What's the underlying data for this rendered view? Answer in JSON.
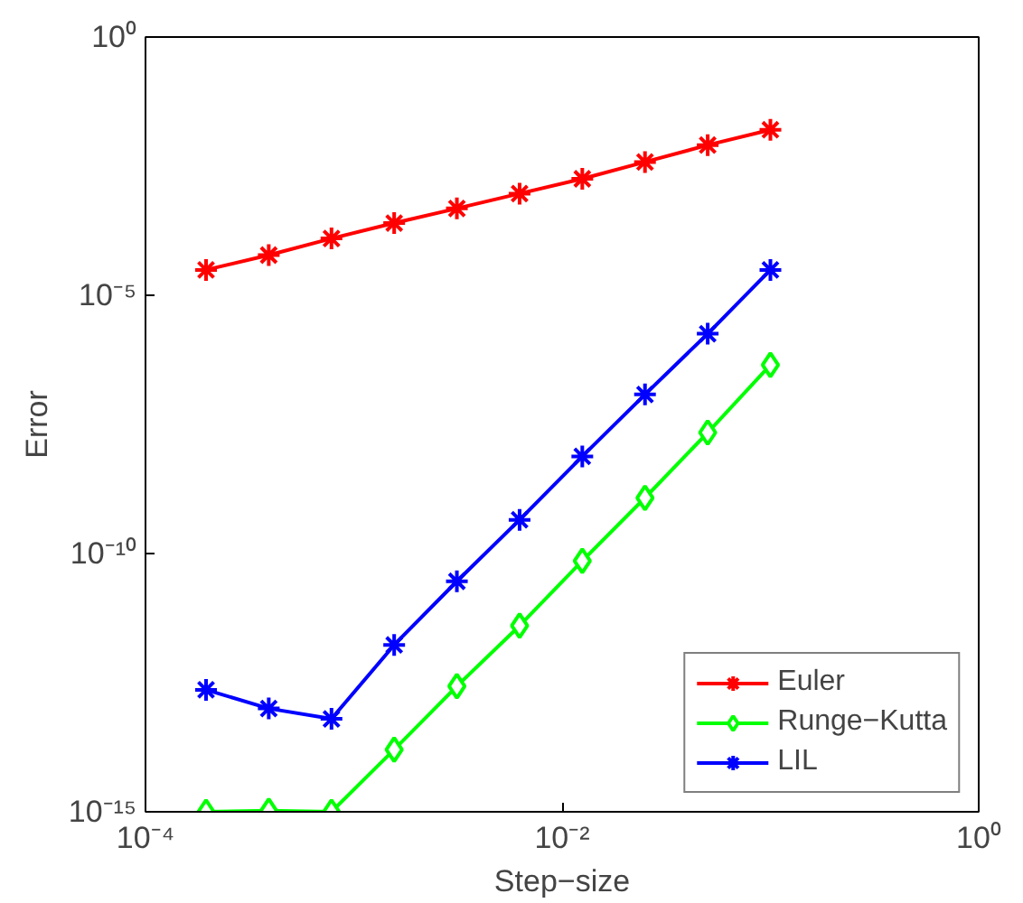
{
  "chart_data": {
    "type": "line",
    "xlabel": "Step−size",
    "ylabel": "Error",
    "log": "xy",
    "grid": false,
    "legend": "bottom right",
    "line_style": "solid",
    "x": [
      0.0001953,
      0.0003906,
      0.0007813,
      0.0015625,
      0.003125,
      0.00625,
      0.0125,
      0.025,
      0.05,
      0.1
    ],
    "xlim": [
      0.0001,
      1
    ],
    "xticks": [
      {
        "value": 0.0001,
        "label": "10⁻⁴"
      },
      {
        "value": 0.01,
        "label": "10⁻²"
      },
      {
        "value": 1,
        "label": "10⁰"
      }
    ],
    "ylim": [
      1e-15,
      1
    ],
    "yticks": [
      {
        "value": 1e-15,
        "label": "10⁻¹⁵"
      },
      {
        "value": 1e-10,
        "label": "10⁻¹⁰"
      },
      {
        "value": 1e-05,
        "label": "10⁻⁵"
      },
      {
        "value": 1,
        "label": "10⁰"
      }
    ],
    "series": [
      {
        "name": "Euler",
        "color": "#ff0000",
        "marker": "cross",
        "values": [
          3.1e-05,
          6e-05,
          0.000126,
          0.00025,
          0.00048,
          0.00093,
          0.0018,
          0.0038,
          0.0081,
          0.016
        ]
      },
      {
        "name": "Runge−Kutta",
        "color": "#00ff00",
        "marker": "diamond",
        "values": [
          1e-15,
          1.05e-15,
          1e-15,
          1.6e-14,
          2.7e-13,
          4e-12,
          7.2e-11,
          1.2e-09,
          2.2e-08,
          4.5e-07
        ]
      },
      {
        "name": "LIL",
        "color": "#0000ff",
        "marker": "cross",
        "values": [
          2.3e-13,
          1e-13,
          6.3e-14,
          1.7e-12,
          2.9e-11,
          4.5e-10,
          7.6e-09,
          1.2e-07,
          1.8e-06,
          3.1e-05
        ]
      }
    ]
  }
}
